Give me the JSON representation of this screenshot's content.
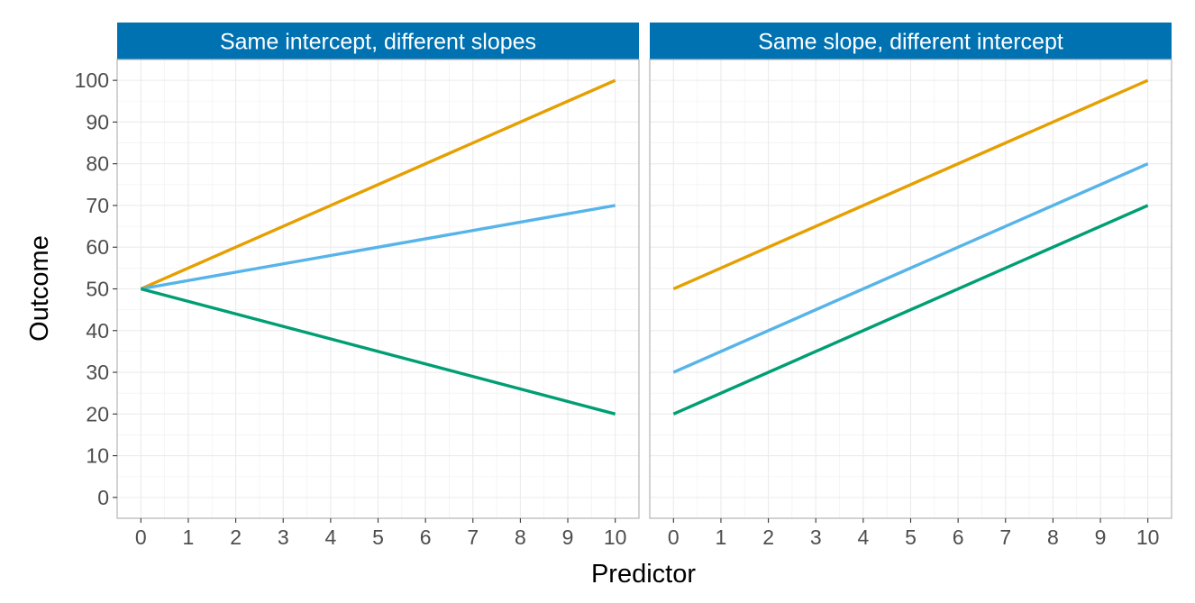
{
  "chart_data": {
    "type": "line",
    "xlabel": "Predictor",
    "ylabel": "Outcome",
    "xlim": [
      -0.5,
      10.5
    ],
    "ylim": [
      -5,
      105
    ],
    "x_ticks": [
      0,
      1,
      2,
      3,
      4,
      5,
      6,
      7,
      8,
      9,
      10
    ],
    "y_ticks": [
      0,
      10,
      20,
      30,
      40,
      50,
      60,
      70,
      80,
      90,
      100
    ],
    "grid": true,
    "colors": {
      "strip_bg": "#0072B2",
      "panel_border": "#b3b3b3"
    },
    "panels": [
      {
        "title": "Same intercept, different slopes",
        "series": [
          {
            "color": "#E69F00",
            "x": [
              0,
              10
            ],
            "y": [
              50,
              100
            ]
          },
          {
            "color": "#56B4E9",
            "x": [
              0,
              10
            ],
            "y": [
              50,
              70
            ]
          },
          {
            "color": "#009E73",
            "x": [
              0,
              10
            ],
            "y": [
              50,
              20
            ]
          }
        ]
      },
      {
        "title": "Same slope, different intercept",
        "series": [
          {
            "color": "#E69F00",
            "x": [
              0,
              10
            ],
            "y": [
              50,
              100
            ]
          },
          {
            "color": "#56B4E9",
            "x": [
              0,
              10
            ],
            "y": [
              30,
              80
            ]
          },
          {
            "color": "#009E73",
            "x": [
              0,
              10
            ],
            "y": [
              20,
              70
            ]
          }
        ]
      }
    ]
  }
}
